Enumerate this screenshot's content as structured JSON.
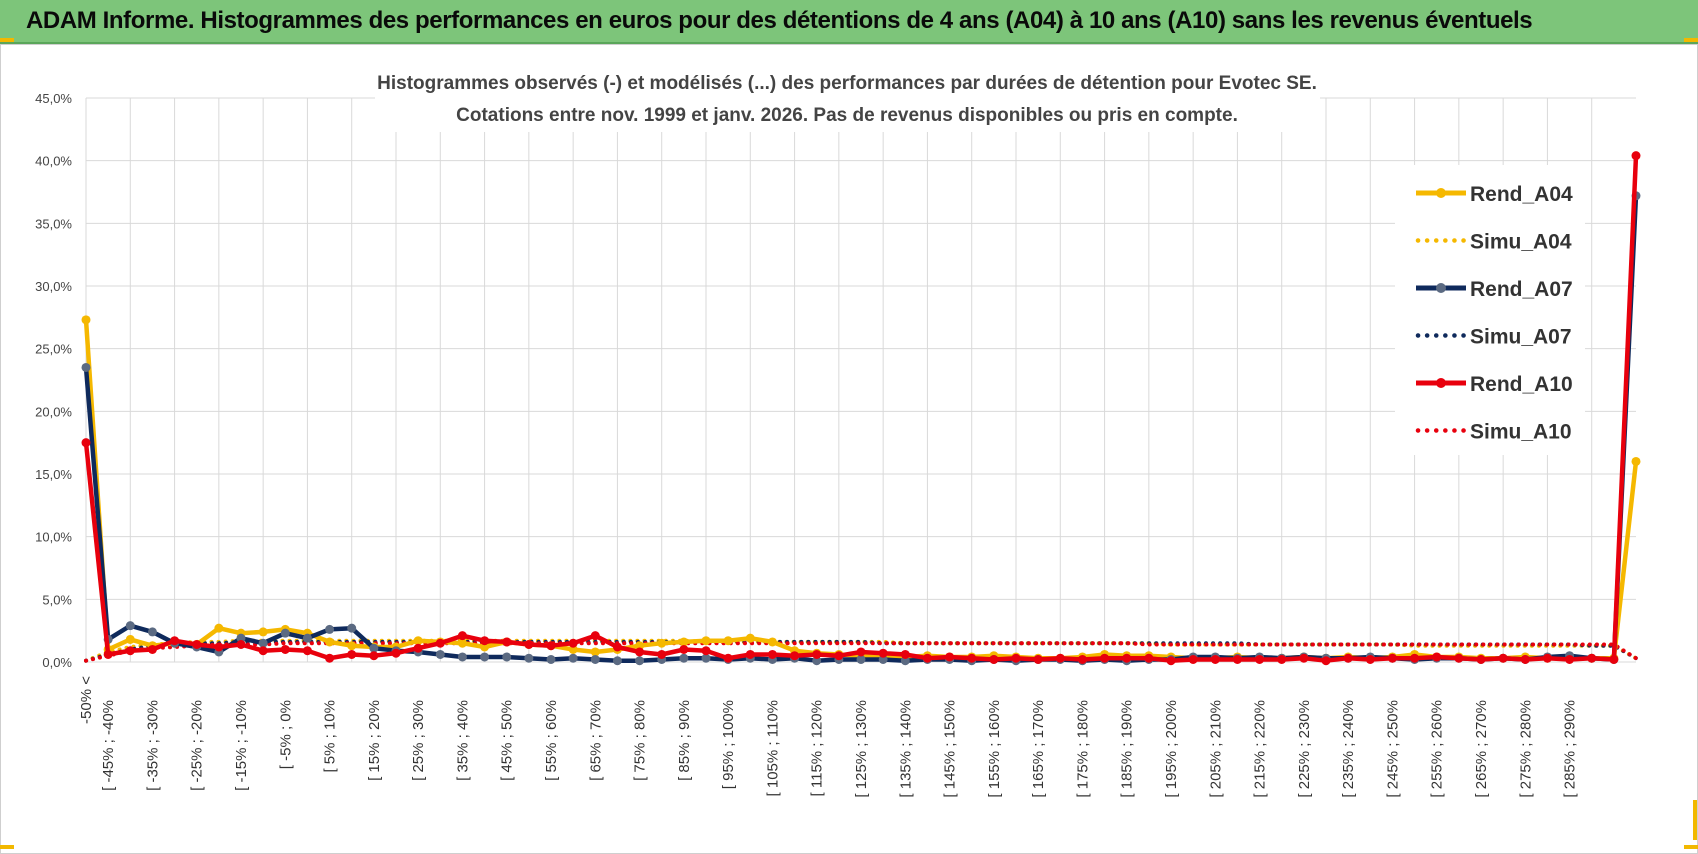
{
  "header": {
    "title": "ADAM Informe. Histogrammes des performances en euros pour des détentions de 4 ans (A04) à 10 ans (A10) sans les revenus éventuels"
  },
  "colors": {
    "header_bg": "#7dc57a",
    "accent_corner": "#f2b800",
    "A04": "#f5b800",
    "A07": "#0f2a5c",
    "A10": "#e8000d",
    "marker_A07": "#5b6a82"
  },
  "chart_data": {
    "type": "line",
    "title_lines": [
      "Histogrammes observés (-) et modélisés (...)  des performances par durées de détention pour Evotec SE.",
      "Cotations entre nov. 1999 et janv. 2026. Pas de revenus disponibles ou pris en compte."
    ],
    "y_ticks": [
      "0,0%",
      "5,0%",
      "10,0%",
      "15,0%",
      "20,0%",
      "25,0%",
      "30,0%",
      "35,0%",
      "40,0%",
      "45,0%"
    ],
    "ylim": [
      0,
      45
    ],
    "grid": true,
    "legend_position": "top-right",
    "x_tick_labels": [
      "-50% <",
      "[ -45% ; -40%",
      "[ -35% ; -30%",
      "[ -25% ; -20%",
      "[ -15% ; -10%",
      "[ -5% ; 0%",
      "[ 5% ; 10%",
      "[ 15% ; 20%",
      "[ 25% ; 30%",
      "[ 35% ; 40%",
      "[ 45% ; 50%",
      "[ 55% ; 60%",
      "[ 65% ; 70%",
      "[ 75% ; 80%",
      "[ 85% ; 90%",
      "[ 95% ; 100%",
      "[ 105% ; 110%",
      "[ 115% ; 120%",
      "[ 125% ; 130%",
      "[ 135% ; 140%",
      "[ 145% ; 150%",
      "[ 155% ; 160%",
      "[ 165% ; 170%",
      "[ 175% ; 180%",
      "[ 185% ; 190%",
      "[ 195% ; 200%",
      "[ 205% ; 210%",
      "[ 215% ; 220%",
      "[ 225% ; 230%",
      "[ 235% ; 240%",
      "[ 245% ; 250%",
      "[ 255% ; 260%",
      "[ 265% ; 270%",
      "[ 275% ; 280%",
      "[ 285% ; 290%"
    ],
    "series": [
      {
        "name": "Rend_A04",
        "style": "solid",
        "color": "#f5b800",
        "values": [
          27.3,
          1.0,
          1.8,
          1.3,
          1.5,
          1.4,
          2.7,
          2.3,
          2.4,
          2.6,
          2.3,
          1.6,
          1.3,
          1.2,
          1.2,
          1.7,
          1.6,
          1.5,
          1.2,
          1.6,
          1.4,
          1.3,
          1.0,
          0.8,
          1.0,
          1.3,
          1.5,
          1.6,
          1.7,
          1.7,
          1.9,
          1.6,
          0.9,
          0.7,
          0.6,
          0.5,
          0.5,
          0.4,
          0.5,
          0.4,
          0.4,
          0.5,
          0.4,
          0.3,
          0.3,
          0.4,
          0.6,
          0.5,
          0.5,
          0.4,
          0.3,
          0.3,
          0.4,
          0.3,
          0.3,
          0.4,
          0.3,
          0.4,
          0.3,
          0.4,
          0.6,
          0.4,
          0.4,
          0.3,
          0.3,
          0.4,
          0.3,
          0.4,
          0.3,
          0.3,
          16.0
        ]
      },
      {
        "name": "Simu_A04",
        "style": "dotted",
        "color": "#f5b800",
        "values": [
          0.1,
          0.8,
          1.2,
          1.4,
          1.5,
          1.6,
          1.6,
          1.7,
          1.7,
          1.7,
          1.7,
          1.7,
          1.7,
          1.7,
          1.7,
          1.7,
          1.7,
          1.7,
          1.7,
          1.7,
          1.7,
          1.7,
          1.7,
          1.7,
          1.7,
          1.7,
          1.7,
          1.7,
          1.6,
          1.6,
          1.6,
          1.6,
          1.6,
          1.6,
          1.6,
          1.6,
          1.6,
          1.5,
          1.5,
          1.5,
          1.5,
          1.5,
          1.5,
          1.5,
          1.5,
          1.5,
          1.5,
          1.5,
          1.5,
          1.4,
          1.4,
          1.4,
          1.4,
          1.4,
          1.4,
          1.4,
          1.4,
          1.4,
          1.4,
          1.4,
          1.3,
          1.3,
          1.3,
          1.3,
          1.3,
          1.3,
          1.3,
          1.3,
          1.3,
          1.3,
          0.3
        ]
      },
      {
        "name": "Rend_A07",
        "style": "solid",
        "color": "#0f2a5c",
        "values": [
          23.5,
          1.8,
          2.9,
          2.4,
          1.5,
          1.2,
          0.8,
          1.9,
          1.5,
          2.3,
          1.9,
          2.6,
          2.7,
          1.1,
          0.9,
          0.8,
          0.6,
          0.4,
          0.4,
          0.4,
          0.3,
          0.2,
          0.3,
          0.2,
          0.1,
          0.1,
          0.2,
          0.3,
          0.3,
          0.2,
          0.3,
          0.2,
          0.3,
          0.1,
          0.2,
          0.2,
          0.2,
          0.1,
          0.2,
          0.2,
          0.1,
          0.2,
          0.1,
          0.2,
          0.2,
          0.1,
          0.2,
          0.1,
          0.2,
          0.2,
          0.4,
          0.4,
          0.3,
          0.4,
          0.3,
          0.4,
          0.3,
          0.3,
          0.4,
          0.3,
          0.2,
          0.3,
          0.3,
          0.2,
          0.3,
          0.2,
          0.4,
          0.5,
          0.3,
          0.2,
          37.2
        ]
      },
      {
        "name": "Simu_A07",
        "style": "dotted",
        "color": "#0f2a5c",
        "values": [
          0.1,
          0.6,
          1.0,
          1.3,
          1.4,
          1.5,
          1.5,
          1.6,
          1.6,
          1.6,
          1.6,
          1.6,
          1.6,
          1.6,
          1.6,
          1.6,
          1.6,
          1.6,
          1.6,
          1.6,
          1.6,
          1.6,
          1.6,
          1.6,
          1.6,
          1.6,
          1.6,
          1.6,
          1.6,
          1.6,
          1.6,
          1.6,
          1.6,
          1.6,
          1.6,
          1.6,
          1.5,
          1.5,
          1.5,
          1.5,
          1.5,
          1.5,
          1.5,
          1.5,
          1.5,
          1.5,
          1.5,
          1.5,
          1.5,
          1.5,
          1.5,
          1.5,
          1.5,
          1.4,
          1.4,
          1.4,
          1.4,
          1.4,
          1.4,
          1.4,
          1.4,
          1.4,
          1.4,
          1.4,
          1.4,
          1.4,
          1.4,
          1.4,
          1.3,
          1.3,
          0.3
        ]
      },
      {
        "name": "Rend_A10",
        "style": "solid",
        "color": "#e8000d",
        "values": [
          17.5,
          0.6,
          0.9,
          1.0,
          1.7,
          1.4,
          1.2,
          1.4,
          0.9,
          1.0,
          0.9,
          0.3,
          0.6,
          0.5,
          0.7,
          1.1,
          1.5,
          2.1,
          1.7,
          1.6,
          1.4,
          1.3,
          1.5,
          2.1,
          1.2,
          0.8,
          0.6,
          1.0,
          0.9,
          0.3,
          0.6,
          0.6,
          0.5,
          0.6,
          0.5,
          0.8,
          0.7,
          0.6,
          0.3,
          0.4,
          0.3,
          0.2,
          0.3,
          0.2,
          0.3,
          0.2,
          0.3,
          0.3,
          0.3,
          0.1,
          0.2,
          0.2,
          0.2,
          0.2,
          0.2,
          0.3,
          0.1,
          0.3,
          0.2,
          0.3,
          0.3,
          0.4,
          0.3,
          0.2,
          0.3,
          0.2,
          0.3,
          0.2,
          0.3,
          0.2,
          40.4
        ]
      },
      {
        "name": "Simu_A10",
        "style": "dotted",
        "color": "#e8000d",
        "values": [
          0.1,
          0.5,
          0.9,
          1.1,
          1.2,
          1.3,
          1.4,
          1.4,
          1.4,
          1.5,
          1.5,
          1.5,
          1.5,
          1.5,
          1.5,
          1.5,
          1.5,
          1.5,
          1.5,
          1.5,
          1.5,
          1.5,
          1.5,
          1.5,
          1.5,
          1.5,
          1.5,
          1.5,
          1.5,
          1.5,
          1.5,
          1.5,
          1.5,
          1.5,
          1.5,
          1.5,
          1.5,
          1.5,
          1.5,
          1.5,
          1.5,
          1.5,
          1.5,
          1.5,
          1.5,
          1.5,
          1.5,
          1.5,
          1.4,
          1.4,
          1.4,
          1.4,
          1.4,
          1.4,
          1.4,
          1.4,
          1.4,
          1.4,
          1.4,
          1.4,
          1.4,
          1.4,
          1.4,
          1.4,
          1.4,
          1.4,
          1.4,
          1.4,
          1.4,
          1.4,
          0.3
        ]
      }
    ]
  }
}
